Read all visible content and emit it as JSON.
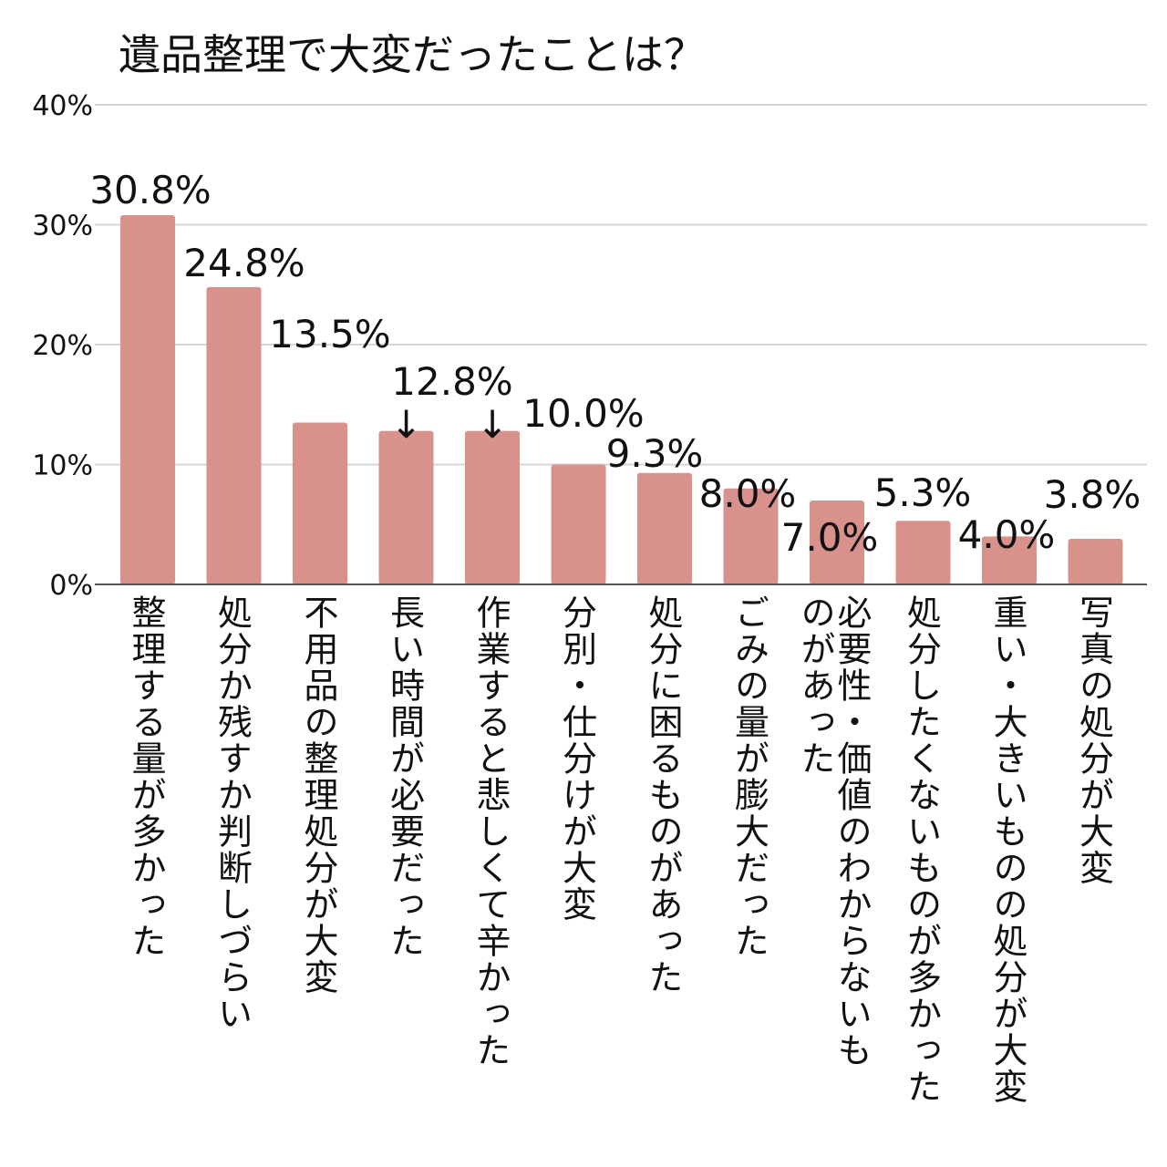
{
  "chart_data": {
    "type": "bar",
    "title": "遺品整理で大変だったことは？",
    "xlabel": "",
    "ylabel": "",
    "ylim": [
      0,
      40
    ],
    "y_ticks": [
      "0%",
      "10%",
      "20%",
      "30%",
      "40%"
    ],
    "grid": true,
    "bar_color": "#d9918c",
    "categories": [
      "整理する量が多かった",
      "処分か残すか判断しづらい",
      "不用品の整理処分が大変",
      "長い時間が必要だった",
      "作業すると悲しくて辛かった",
      "分別・仕分けが大変",
      "処分に困るものがあった",
      "ごみの量が膨大だった",
      "必要性・価値のわからないものがあった",
      "処分したくないものが多かった",
      "重い・大きいものの処分が大変",
      "写真の処分が大変"
    ],
    "values": [
      30.8,
      24.8,
      13.5,
      12.8,
      12.8,
      10.0,
      9.3,
      8.0,
      7.0,
      5.3,
      4.0,
      3.8
    ],
    "data_labels": [
      "30.8%",
      "24.8%",
      "13.5%",
      "",
      "",
      "10.0%",
      "9.3%",
      "8.0%",
      "7.0%",
      "5.3%",
      "4.0%",
      "3.8%"
    ],
    "shared_label": {
      "text": "12.8%",
      "arrow": "↓"
    }
  }
}
